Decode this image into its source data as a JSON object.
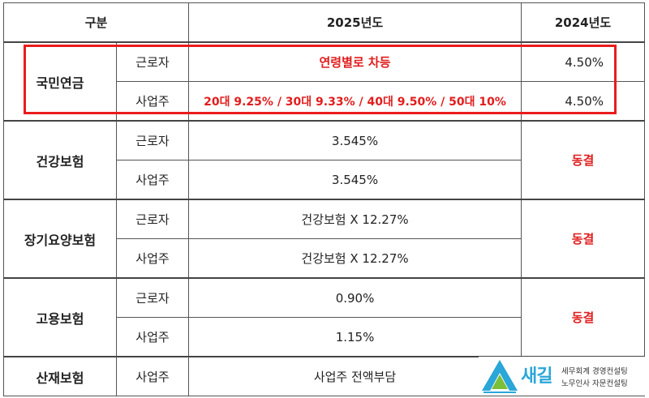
{
  "header": {
    "category": "구분",
    "year_current": "2025년도",
    "year_prev": "2024년도"
  },
  "rows": [
    {
      "group": "국민연금",
      "worker_label": "근로자",
      "worker_2025": "연령별로 차등",
      "worker_2024": "4.50%",
      "employer_label": "사업주",
      "employer_2025": "20대 9.25% / 30대 9.33% / 40대 9.50% / 50대 10%",
      "employer_2024": "4.50%"
    },
    {
      "group": "건강보험",
      "worker_label": "근로자",
      "worker_2025": "3.545%",
      "employer_label": "사업주",
      "employer_2025": "3.545%",
      "prev": "동결"
    },
    {
      "group": "장기요양보험",
      "worker_label": "근로자",
      "worker_2025": "건강보험 X 12.27%",
      "employer_label": "사업주",
      "employer_2025": "건강보험 X 12.27%",
      "prev": "동결"
    },
    {
      "group": "고용보험",
      "worker_label": "근로자",
      "worker_2025": "0.90%",
      "employer_label": "사업주",
      "employer_2025": "1.15%",
      "prev": "동결"
    },
    {
      "group": "산재보험",
      "employer_label": "사업주",
      "employer_2025": "사업주 전액부담"
    }
  ],
  "logo": {
    "name": "새길",
    "line1": "세무회계 경영컨설팅",
    "line2": "노무인사 자문컨설팅"
  },
  "colors": {
    "accent_red": "#e11d1d",
    "logo_blue": "#2aa6d8",
    "logo_green": "#7bbf3a"
  }
}
